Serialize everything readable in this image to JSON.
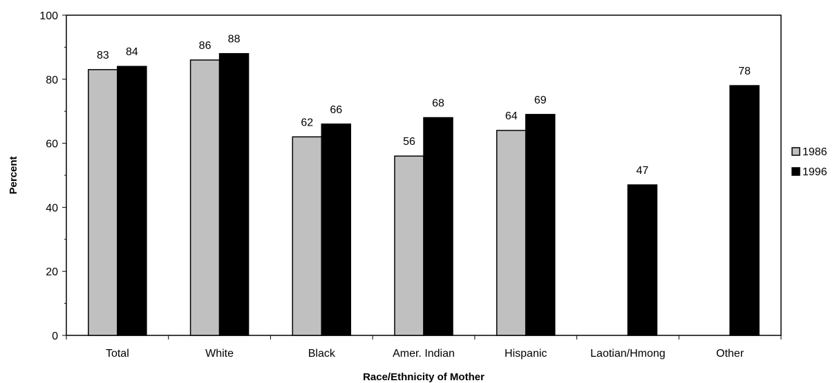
{
  "chart_data": {
    "type": "bar",
    "title": "",
    "xlabel": "Race/Ethnicity of Mother",
    "ylabel": "Percent",
    "ylim": [
      0,
      100
    ],
    "yticks": [
      0,
      20,
      40,
      60,
      80,
      100
    ],
    "grid": false,
    "legend_position": "right",
    "categories": [
      "Total",
      "White",
      "Black",
      "Amer. Indian",
      "Hispanic",
      "Laotian/Hmong",
      "Other"
    ],
    "series": [
      {
        "name": "1986",
        "color": "#c0c0c0",
        "values": [
          83,
          86,
          62,
          56,
          64,
          null,
          null
        ]
      },
      {
        "name": "1996",
        "color": "#000000",
        "values": [
          84,
          88,
          66,
          68,
          69,
          47,
          78
        ]
      }
    ]
  }
}
